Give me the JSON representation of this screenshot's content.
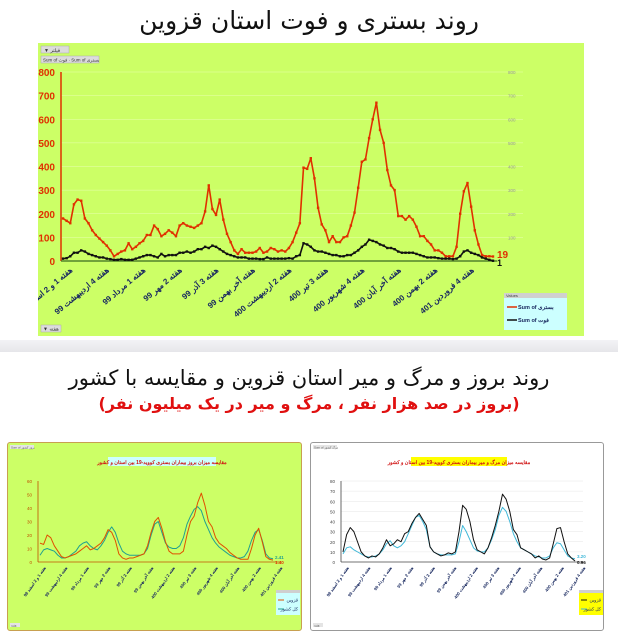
{
  "page": {
    "title_top": "روند بستری و فوت استان قزوین",
    "title_bottom": "روند بروز و مرگ و میر استان قزوین و مقایسه با کشور",
    "subtitle_bottom": "(بروز در صد هزار نفر ، مرگ و میر در یک میلیون نفر)"
  },
  "colors": {
    "panel_green": "#ccff66",
    "hosp_red": "#e03000",
    "death_black": "#111111",
    "country_teal": "#20a090",
    "country_cyan": "#40b8d8",
    "title_red": "#e01010",
    "legend_yellow": "#ffff00",
    "legend_cyan_bg": "#ccffff"
  },
  "main_chart": {
    "filter_button": "فیلتر",
    "field_buttons": [
      "Sum of فوت",
      "Sum of بستری"
    ],
    "bottom_button": "هفته",
    "legend_title": "Values",
    "legend": [
      "Sum of بستری",
      "Sum of فوت"
    ],
    "end_label_red": "19",
    "end_label_black": "1",
    "y_left_ticks": [
      "800",
      "700",
      "600",
      "500",
      "400",
      "300",
      "200",
      "100",
      "0"
    ],
    "y_right_ticks": [
      "800",
      "700",
      "600",
      "500",
      "400",
      "300",
      "200",
      "100"
    ],
    "x_labels": [
      "هفته 1 و 2 اسفند 98",
      "هفته 4 اردیبهشت 99",
      "هفته 1 مرداد 99",
      "هفته 2 مهر 99",
      "هفته 3 آذر 99",
      "هفته آخر بهمن 99",
      "هفته 2 اردیبهشت 400",
      "هفته 3 تیر 400",
      "هفته 4 شهریور 400",
      "هفته آخر آبان 400",
      "هفته 2 بهمن 400",
      "هفته 4 فروردین 401"
    ]
  },
  "left_chart": {
    "corner_label": "Sum of بروز کشور",
    "title": "مقایسه میزان بروز بیماران بستری کووید-19 بین استان و کشور",
    "y_ticks": [
      "60",
      "50",
      "40",
      "30",
      "20",
      "10",
      "0"
    ],
    "end_label_teal": "2.41",
    "end_label_red": "1.40",
    "legend": [
      "قزوین",
      "کل کشور"
    ],
    "bottom_button": "هفته",
    "x_labels": [
      "هفته 1 و 2 اسفند 98",
      "هفته 4 اردیبهشت 99",
      "هفته 1 مرداد 99",
      "هفته 2 مهر 99",
      "هفته 3 آذر 99",
      "هفته آخر بهمن 99",
      "هفته 2 اردیبهشت 400",
      "هفته 3 تیر 400",
      "هفته 4 شهریور 400",
      "هفته آخر آبان 400",
      "هفته 2 بهمن 400",
      "هفته 4 فروردین 401"
    ]
  },
  "right_chart": {
    "corner_label": "Sum of مرگ کشور",
    "title": "مقایسه میزان مرگ و میر بیماران بستری کووید-19 بین استان و کشور",
    "y_ticks": [
      "80",
      "70",
      "60",
      "50",
      "40",
      "30",
      "20",
      "10",
      "0"
    ],
    "end_label_cyan": "3.20",
    "end_label_black": "0.96",
    "legend": [
      "قزوین",
      "کل کشور"
    ],
    "bottom_button": "هفته",
    "x_labels": [
      "هفته 1 و 2 اسفند 98",
      "هفته 4 اردیبهشت 99",
      "هفته 1 مرداد 99",
      "هفته 2 مهر 99",
      "هفته 3 آذر 99",
      "هفته آخر بهمن 99",
      "هفته 2 اردیبهشت 400",
      "هفته 3 تیر 400",
      "هفته 4 شهریور 400",
      "هفته آخر آبان 400",
      "هفته 2 بهمن 400",
      "هفته 4 فروردین 401"
    ]
  },
  "chart_data": [
    {
      "type": "line",
      "title": "روند بستری و فوت استان قزوین",
      "xlabel": "هفته",
      "ylabel": "",
      "ylim": [
        0,
        800
      ],
      "grid": true,
      "legend_position": "bottom-right",
      "categories": [
        "هفته 1 و 2 اسفند 98",
        "هفته 4 اردیبهشت 99",
        "هفته 1 مرداد 99",
        "هفته 2 مهر 99",
        "هفته 3 آذر 99",
        "هفته آخر بهمن 99",
        "هفته 2 اردیبهشت 400",
        "هفته 3 تیر 400",
        "هفته 4 شهریور 400",
        "هفته آخر آبان 400",
        "هفته 2 بهمن 400",
        "هفته 4 فروردین 401"
      ],
      "series": [
        {
          "name": "Sum of بستری",
          "color": "#e03000",
          "values": [
            180,
            170,
            160,
            240,
            260,
            255,
            180,
            160,
            130,
            110,
            95,
            80,
            65,
            45,
            20,
            30,
            40,
            45,
            75,
            50,
            60,
            75,
            85,
            110,
            110,
            150,
            135,
            105,
            115,
            130,
            120,
            105,
            150,
            160,
            150,
            145,
            140,
            150,
            160,
            210,
            320,
            220,
            195,
            260,
            175,
            115,
            80,
            45,
            30,
            50,
            35,
            35,
            35,
            40,
            55,
            35,
            40,
            55,
            50,
            40,
            45,
            40,
            55,
            80,
            120,
            160,
            395,
            390,
            435,
            350,
            225,
            155,
            130,
            80,
            105,
            80,
            80,
            100,
            105,
            150,
            205,
            310,
            420,
            430,
            520,
            600,
            670,
            555,
            500,
            385,
            320,
            300,
            190,
            190,
            175,
            190,
            175,
            145,
            105,
            105,
            85,
            70,
            45,
            45,
            35,
            20,
            20,
            20,
            60,
            200,
            295,
            330,
            230,
            130,
            70,
            25,
            20,
            20,
            19
          ]
        },
        {
          "name": "Sum of فوت",
          "color": "#111111",
          "values": [
            10,
            12,
            20,
            35,
            35,
            45,
            40,
            30,
            25,
            20,
            15,
            15,
            10,
            8,
            5,
            5,
            8,
            5,
            5,
            5,
            10,
            15,
            20,
            25,
            25,
            20,
            15,
            30,
            20,
            25,
            25,
            25,
            35,
            35,
            40,
            35,
            40,
            50,
            50,
            60,
            55,
            65,
            60,
            50,
            40,
            30,
            25,
            20,
            15,
            15,
            15,
            10,
            10,
            10,
            8,
            8,
            15,
            10,
            10,
            10,
            10,
            10,
            12,
            10,
            20,
            25,
            75,
            70,
            60,
            45,
            40,
            40,
            35,
            30,
            25,
            25,
            20,
            20,
            25,
            25,
            35,
            45,
            60,
            70,
            90,
            85,
            80,
            70,
            65,
            55,
            55,
            50,
            40,
            35,
            35,
            35,
            35,
            30,
            25,
            20,
            15,
            15,
            15,
            12,
            10,
            10,
            10,
            8,
            10,
            20,
            40,
            45,
            35,
            30,
            25,
            15,
            10,
            5,
            1
          ]
        }
      ],
      "end_labels": {
        "Sum of بستری": 19,
        "Sum of فوت": 1
      },
      "secondary_y_ticks": [
        100,
        200,
        300,
        400,
        500,
        600,
        700,
        800
      ]
    },
    {
      "type": "line",
      "title": "مقایسه میزان بروز بیماران بستری کووید-19 بین استان و کشور",
      "ylim": [
        0,
        60
      ],
      "grid": false,
      "legend_position": "bottom-right",
      "categories": [
        "هفته 1 و 2 اسفند 98",
        "هفته 4 اردیبهشت 99",
        "هفته 1 مرداد 99",
        "هفته 2 مهر 99",
        "هفته 3 آذر 99",
        "هفته آخر بهمن 99",
        "هفته 2 اردیبهشت 400",
        "هفته 3 تیر 400",
        "هفته 4 شهریور 400",
        "هفته آخر آبان 400",
        "هفته 2 بهمن 400",
        "هفته 4 فروردین 401"
      ],
      "series": [
        {
          "name": "قزوین",
          "color": "#e05000",
          "values": [
            14,
            13,
            20,
            18,
            12,
            8,
            4,
            3,
            4,
            5,
            6,
            8,
            10,
            12,
            9,
            10,
            12,
            14,
            18,
            24,
            22,
            16,
            6,
            3,
            2,
            3,
            3,
            4,
            5,
            6,
            12,
            22,
            30,
            33,
            25,
            15,
            8,
            6,
            6,
            6,
            8,
            20,
            30,
            34,
            44,
            51,
            42,
            30,
            26,
            18,
            14,
            12,
            10,
            7,
            5,
            3,
            2,
            2,
            2,
            10,
            20,
            25,
            15,
            4,
            2,
            1.4
          ]
        },
        {
          "name": "کل کشور",
          "color": "#20a090",
          "values": [
            5,
            9,
            10,
            9,
            8,
            5,
            3,
            3,
            4,
            6,
            8,
            12,
            14,
            15,
            12,
            10,
            9,
            12,
            16,
            22,
            26,
            22,
            14,
            8,
            6,
            5,
            5,
            5,
            5,
            6,
            10,
            20,
            28,
            30,
            22,
            14,
            11,
            10,
            10,
            12,
            18,
            28,
            34,
            39,
            41,
            38,
            30,
            24,
            18,
            14,
            11,
            9,
            7,
            5,
            4,
            3,
            3,
            4,
            8,
            16,
            22,
            24,
            16,
            6,
            3,
            2.41
          ]
        }
      ],
      "end_labels": {
        "کل کشور": 2.41,
        "قزوین": 1.4
      }
    },
    {
      "type": "line",
      "title": "مقایسه میزان مرگ و میر بیماران بستری کووید-19 بین استان و کشور",
      "ylim": [
        0,
        80
      ],
      "grid": true,
      "legend_position": "bottom-right",
      "categories": [
        "هفته 1 و 2 اسفند 98",
        "هفته 4 اردیبهشت 99",
        "هفته 1 مرداد 99",
        "هفته 2 مهر 99",
        "هفته 3 آذر 99",
        "هفته آخر بهمن 99",
        "هفته 2 اردیبهشت 400",
        "هفته 3 تیر 400",
        "هفته 4 شهریور 400",
        "هفته آخر آبان 400",
        "هفته 2 بهمن 400",
        "هفته 4 فروردین 401"
      ],
      "series": [
        {
          "name": "قزوین",
          "color": "#111111",
          "values": [
            10,
            27,
            34,
            30,
            20,
            10,
            6,
            4,
            6,
            5,
            8,
            14,
            22,
            16,
            18,
            22,
            20,
            28,
            30,
            38,
            44,
            48,
            42,
            36,
            15,
            10,
            8,
            6,
            7,
            9,
            8,
            10,
            30,
            56,
            52,
            40,
            22,
            12,
            10,
            8,
            14,
            24,
            36,
            50,
            67,
            62,
            50,
            32,
            27,
            14,
            12,
            10,
            8,
            4,
            6,
            3,
            2,
            4,
            18,
            33,
            34,
            20,
            8,
            4,
            0.96
          ]
        },
        {
          "name": "کل کشور",
          "color": "#40b8d8",
          "values": [
            8,
            14,
            15,
            12,
            10,
            8,
            6,
            5,
            5,
            6,
            8,
            12,
            18,
            21,
            16,
            14,
            16,
            20,
            28,
            36,
            44,
            46,
            40,
            32,
            15,
            10,
            8,
            7,
            7,
            7,
            7,
            8,
            20,
            36,
            30,
            22,
            14,
            11,
            10,
            10,
            14,
            22,
            32,
            46,
            54,
            50,
            40,
            28,
            20,
            14,
            12,
            10,
            8,
            6,
            5,
            4,
            4,
            6,
            14,
            19,
            18,
            12,
            6,
            4,
            3.2
          ]
        }
      ],
      "end_labels": {
        "کل کشور": 3.2,
        "قزوین": 0.96
      }
    }
  ]
}
